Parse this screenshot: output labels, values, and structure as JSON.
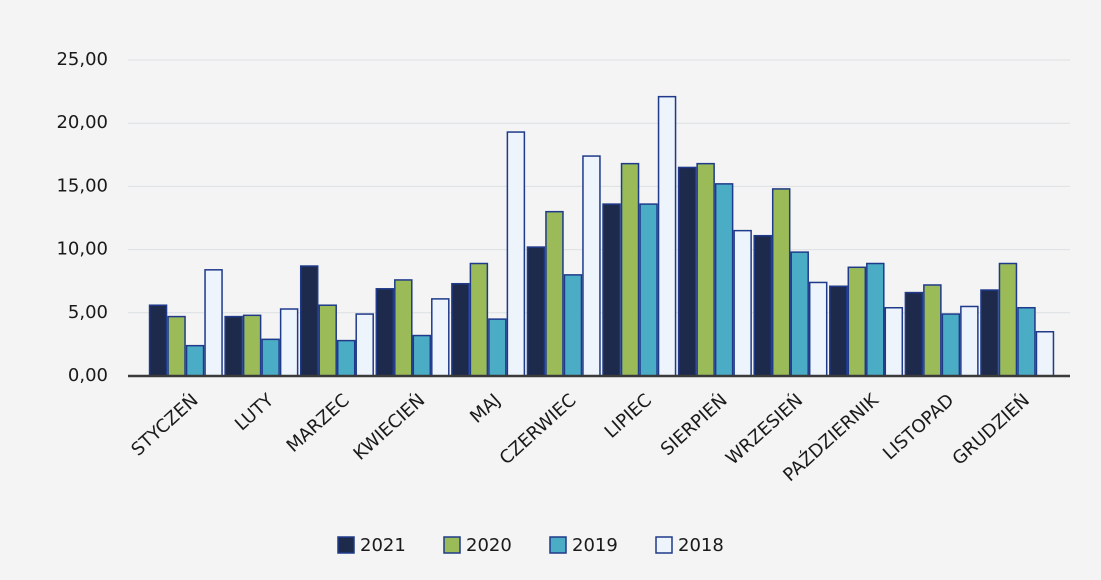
{
  "chart_data": {
    "type": "bar",
    "categories": [
      "STYCZEŃ",
      "LUTY",
      "MARZEC",
      "KWIECIEŃ",
      "MAJ",
      "CZERWIEC",
      "LIPIEC",
      "SIERPIEŃ",
      "WRZESIEŃ",
      "PAŹDZIERNIK",
      "LISTOPAD",
      "GRUDZIEŃ"
    ],
    "series": [
      {
        "name": "2021",
        "color": "#1e2a4c",
        "values": [
          5.6,
          4.7,
          8.7,
          6.9,
          7.3,
          10.2,
          13.6,
          16.5,
          11.1,
          7.1,
          6.6,
          6.8
        ]
      },
      {
        "name": "2020",
        "color": "#9bbb59",
        "values": [
          4.7,
          4.8,
          5.6,
          7.6,
          8.9,
          13.0,
          16.8,
          16.8,
          14.8,
          8.6,
          7.2,
          8.9
        ]
      },
      {
        "name": "2019",
        "color": "#4bacc6",
        "values": [
          2.4,
          2.9,
          2.8,
          3.2,
          4.5,
          8.0,
          13.6,
          15.2,
          9.8,
          8.9,
          4.9,
          5.4
        ]
      },
      {
        "name": "2018",
        "color": "#eef4fc",
        "values": [
          8.4,
          5.3,
          4.9,
          6.1,
          19.3,
          17.4,
          22.1,
          11.5,
          7.4,
          5.4,
          5.5,
          3.5
        ]
      }
    ],
    "ylim": [
      0,
      25
    ],
    "yticks": [
      {
        "value": 0,
        "label": "0,00"
      },
      {
        "value": 5,
        "label": "5,00"
      },
      {
        "value": 10,
        "label": "10,00"
      },
      {
        "value": 15,
        "label": "15,00"
      },
      {
        "value": 20,
        "label": "20,00"
      },
      {
        "value": 25,
        "label": "25,00"
      }
    ],
    "grid": true,
    "legend": "bottom"
  }
}
